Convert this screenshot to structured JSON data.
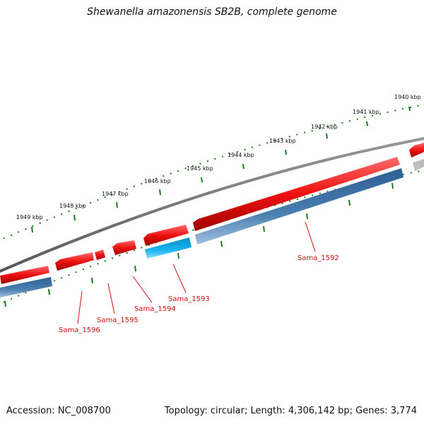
{
  "title": "Shewanella amazonensis SB2B, complete genome",
  "accession": "Accession: NC_008700",
  "topology": "Topology: circular; Length: 4,306,142 bp; Genes: 3,774",
  "colors": {
    "backbone": "#7a7a7a",
    "forward_gene": "#ee1111",
    "reverse_gene": "#4a7fb0",
    "highlight_gene": "#18b4ee",
    "ruler": "#1e7a1e",
    "label": "#d01010"
  },
  "ticks": [
    {
      "label": "1940 kbp",
      "kbp": 1940
    },
    {
      "label": "1941 kbp",
      "kbp": 1941
    },
    {
      "label": "1942 kbp",
      "kbp": 1942
    },
    {
      "label": "1943 kbp",
      "kbp": 1943
    },
    {
      "label": "1944 kbp",
      "kbp": 1944
    },
    {
      "label": "1945 kbp",
      "kbp": 1945
    },
    {
      "label": "1946 kbp",
      "kbp": 1946
    },
    {
      "label": "1947 kbp",
      "kbp": 1947
    },
    {
      "label": "1948 kbp",
      "kbp": 1948
    },
    {
      "label": "1949 kbp",
      "kbp": 1949
    }
  ],
  "gene_labels": [
    {
      "name": "Sama_1592"
    },
    {
      "name": "Sama_1593"
    },
    {
      "name": "Sama_1594"
    },
    {
      "name": "Sama_1595"
    },
    {
      "name": "Sama_1596"
    }
  ]
}
